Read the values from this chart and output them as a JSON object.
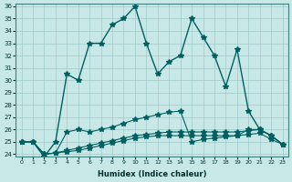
{
  "xlabel": "Humidex (Indice chaleur)",
  "ylabel": "",
  "background_color": "#c8e8e8",
  "grid_color": "#a0c8c8",
  "line_color": "#006060",
  "xlim": [
    0,
    23
  ],
  "ylim": [
    24,
    36
  ],
  "xticks": [
    0,
    1,
    2,
    3,
    4,
    5,
    6,
    7,
    8,
    9,
    10,
    11,
    12,
    13,
    14,
    15,
    16,
    17,
    18,
    19,
    20,
    21,
    22,
    23
  ],
  "yticks": [
    24,
    25,
    26,
    27,
    28,
    29,
    30,
    31,
    32,
    33,
    34,
    35,
    36
  ],
  "line1_x": [
    0,
    1,
    2,
    3,
    4,
    5,
    6,
    7,
    8,
    9,
    10,
    11,
    12,
    13,
    14,
    15,
    16,
    17,
    18,
    19,
    20,
    21,
    22,
    23
  ],
  "line1_y": [
    25,
    25,
    23.8,
    25,
    30.5,
    30,
    33,
    33,
    34.5,
    35,
    36,
    33,
    30.5,
    31.5,
    32,
    35,
    33.5,
    32,
    29.5,
    32.5,
    27.5,
    26,
    25.5,
    24.8
  ],
  "line2_x": [
    0,
    1,
    2,
    3,
    4,
    5,
    6,
    7,
    8,
    9,
    10,
    11,
    12,
    13,
    14,
    15,
    16,
    17,
    18,
    19,
    20,
    21,
    22,
    23
  ],
  "line2_y": [
    25,
    25,
    24,
    24.1,
    25.8,
    26,
    25.8,
    26,
    26.2,
    26.5,
    26.8,
    27,
    27.2,
    27.4,
    27.5,
    25,
    25.2,
    25.3,
    25.4,
    25.5,
    26,
    26,
    25.5,
    24.8
  ],
  "line3_x": [
    0,
    1,
    2,
    3,
    4,
    5,
    6,
    7,
    8,
    9,
    10,
    11,
    12,
    13,
    14,
    15,
    16,
    17,
    18,
    19,
    20,
    21,
    22,
    23
  ],
  "line3_y": [
    25,
    25,
    24,
    24.1,
    24.3,
    24.5,
    24.7,
    24.9,
    25.1,
    25.3,
    25.5,
    25.6,
    25.7,
    25.8,
    25.8,
    25.8,
    25.8,
    25.8,
    25.8,
    25.8,
    25.9,
    26,
    25.5,
    24.8
  ],
  "line4_x": [
    0,
    1,
    2,
    3,
    4,
    5,
    6,
    7,
    8,
    9,
    10,
    11,
    12,
    13,
    14,
    15,
    16,
    17,
    18,
    19,
    20,
    21,
    22,
    23
  ],
  "line4_y": [
    25,
    25,
    24,
    24.1,
    24.2,
    24.3,
    24.5,
    24.7,
    24.9,
    25.1,
    25.3,
    25.4,
    25.5,
    25.5,
    25.5,
    25.5,
    25.5,
    25.5,
    25.5,
    25.5,
    25.6,
    25.7,
    25.2,
    24.8
  ]
}
